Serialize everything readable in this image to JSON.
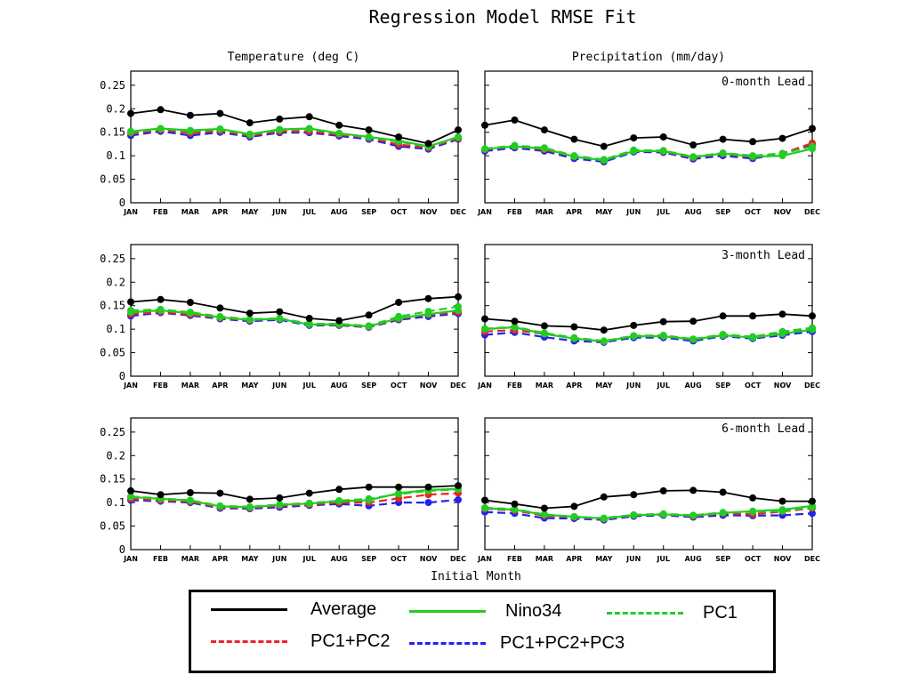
{
  "title": "Regression Model RMSE Fit",
  "column_titles": [
    "Temperature (deg C)",
    "Precipitation (mm/day)"
  ],
  "lead_labels": [
    "0-month Lead",
    "3-month Lead",
    "6-month Lead"
  ],
  "xlabel": "Initial Month",
  "months": [
    "JAN",
    "FEB",
    "MAR",
    "APR",
    "MAY",
    "JUN",
    "JUL",
    "AUG",
    "SEP",
    "OCT",
    "NOV",
    "DEC"
  ],
  "yticks": [
    "0",
    "0.05",
    "0.1",
    "0.15",
    "0.2",
    "0.25"
  ],
  "legend": [
    {
      "label": "Average",
      "color": "#000000",
      "style": "solid"
    },
    {
      "label": "Nino34",
      "color": "#22cc22",
      "style": "solid"
    },
    {
      "label": "PC1",
      "color": "#22cc22",
      "style": "dashed"
    },
    {
      "label": "PC1+PC2",
      "color": "#ee2222",
      "style": "dashed"
    },
    {
      "label": "PC1+PC2+PC3",
      "color": "#2222ee",
      "style": "dashed"
    }
  ],
  "chart_data": [
    {
      "type": "line",
      "row": 0,
      "col": 0,
      "title": "Temperature (deg C)",
      "ylim": [
        0,
        0.28
      ],
      "categories": [
        "JAN",
        "FEB",
        "MAR",
        "APR",
        "MAY",
        "JUN",
        "JUL",
        "AUG",
        "SEP",
        "OCT",
        "NOV",
        "DEC"
      ],
      "series": [
        {
          "name": "Average",
          "values": [
            0.19,
            0.198,
            0.186,
            0.19,
            0.17,
            0.178,
            0.183,
            0.165,
            0.155,
            0.14,
            0.126,
            0.155
          ]
        },
        {
          "name": "Nino34",
          "values": [
            0.152,
            0.158,
            0.154,
            0.157,
            0.146,
            0.156,
            0.158,
            0.148,
            0.14,
            0.132,
            0.12,
            0.14
          ]
        },
        {
          "name": "PC1",
          "values": [
            0.15,
            0.157,
            0.152,
            0.156,
            0.145,
            0.155,
            0.157,
            0.147,
            0.139,
            0.13,
            0.119,
            0.139
          ]
        },
        {
          "name": "PC1+PC2",
          "values": [
            0.148,
            0.155,
            0.148,
            0.153,
            0.143,
            0.152,
            0.152,
            0.145,
            0.138,
            0.124,
            0.117,
            0.137
          ]
        },
        {
          "name": "PC1+PC2+PC3",
          "values": [
            0.143,
            0.152,
            0.143,
            0.15,
            0.14,
            0.149,
            0.149,
            0.142,
            0.135,
            0.12,
            0.114,
            0.135
          ]
        }
      ]
    },
    {
      "type": "line",
      "row": 0,
      "col": 1,
      "title": "Precipitation (mm/day)",
      "ylim": [
        0,
        0.28
      ],
      "categories": [
        "JAN",
        "FEB",
        "MAR",
        "APR",
        "MAY",
        "JUN",
        "JUL",
        "AUG",
        "SEP",
        "OCT",
        "NOV",
        "DEC"
      ],
      "series": [
        {
          "name": "Average",
          "values": [
            0.165,
            0.176,
            0.155,
            0.135,
            0.12,
            0.138,
            0.14,
            0.123,
            0.135,
            0.13,
            0.137,
            0.158
          ]
        },
        {
          "name": "Nino34",
          "values": [
            0.114,
            0.12,
            0.115,
            0.098,
            0.09,
            0.11,
            0.11,
            0.097,
            0.105,
            0.098,
            0.1,
            0.115
          ]
        },
        {
          "name": "PC1",
          "values": [
            0.115,
            0.122,
            0.117,
            0.1,
            0.092,
            0.112,
            0.111,
            0.098,
            0.106,
            0.1,
            0.105,
            0.12
          ]
        },
        {
          "name": "PC1+PC2",
          "values": [
            0.113,
            0.12,
            0.113,
            0.098,
            0.09,
            0.111,
            0.109,
            0.096,
            0.104,
            0.097,
            0.105,
            0.127
          ]
        },
        {
          "name": "PC1+PC2+PC3",
          "values": [
            0.11,
            0.117,
            0.11,
            0.094,
            0.087,
            0.108,
            0.107,
            0.093,
            0.1,
            0.094,
            0.104,
            0.124
          ]
        }
      ]
    },
    {
      "type": "line",
      "row": 1,
      "col": 0,
      "title": "Temperature (deg C)",
      "ylim": [
        0,
        0.28
      ],
      "categories": [
        "JAN",
        "FEB",
        "MAR",
        "APR",
        "MAY",
        "JUN",
        "JUL",
        "AUG",
        "SEP",
        "OCT",
        "NOV",
        "DEC"
      ],
      "series": [
        {
          "name": "Average",
          "values": [
            0.158,
            0.163,
            0.157,
            0.145,
            0.134,
            0.137,
            0.123,
            0.118,
            0.13,
            0.157,
            0.165,
            0.169
          ]
        },
        {
          "name": "Nino34",
          "values": [
            0.136,
            0.14,
            0.134,
            0.125,
            0.12,
            0.122,
            0.11,
            0.11,
            0.106,
            0.123,
            0.132,
            0.14
          ]
        },
        {
          "name": "PC1",
          "values": [
            0.14,
            0.142,
            0.136,
            0.127,
            0.121,
            0.123,
            0.112,
            0.111,
            0.107,
            0.127,
            0.138,
            0.148
          ]
        },
        {
          "name": "PC1+PC2",
          "values": [
            0.132,
            0.137,
            0.131,
            0.124,
            0.119,
            0.122,
            0.11,
            0.109,
            0.105,
            0.122,
            0.131,
            0.136
          ]
        },
        {
          "name": "PC1+PC2+PC3",
          "values": [
            0.128,
            0.135,
            0.129,
            0.122,
            0.117,
            0.12,
            0.108,
            0.108,
            0.104,
            0.12,
            0.127,
            0.133
          ]
        }
      ]
    },
    {
      "type": "line",
      "row": 1,
      "col": 1,
      "title": "Precipitation (mm/day)",
      "ylim": [
        0,
        0.28
      ],
      "categories": [
        "JAN",
        "FEB",
        "MAR",
        "APR",
        "MAY",
        "JUN",
        "JUL",
        "AUG",
        "SEP",
        "OCT",
        "NOV",
        "DEC"
      ],
      "series": [
        {
          "name": "Average",
          "values": [
            0.122,
            0.117,
            0.107,
            0.105,
            0.098,
            0.108,
            0.116,
            0.117,
            0.128,
            0.128,
            0.132,
            0.128
          ]
        },
        {
          "name": "Nino34",
          "values": [
            0.1,
            0.104,
            0.09,
            0.08,
            0.074,
            0.085,
            0.085,
            0.078,
            0.087,
            0.082,
            0.09,
            0.099
          ]
        },
        {
          "name": "PC1",
          "values": [
            0.101,
            0.105,
            0.092,
            0.082,
            0.075,
            0.086,
            0.087,
            0.079,
            0.089,
            0.084,
            0.095,
            0.103
          ]
        },
        {
          "name": "PC1+PC2",
          "values": [
            0.095,
            0.098,
            0.09,
            0.08,
            0.074,
            0.085,
            0.086,
            0.078,
            0.088,
            0.083,
            0.093,
            0.1
          ]
        },
        {
          "name": "PC1+PC2+PC3",
          "values": [
            0.088,
            0.093,
            0.083,
            0.075,
            0.072,
            0.082,
            0.082,
            0.075,
            0.085,
            0.08,
            0.087,
            0.095
          ]
        }
      ]
    },
    {
      "type": "line",
      "row": 2,
      "col": 0,
      "title": "Temperature (deg C)",
      "ylim": [
        0,
        0.28
      ],
      "categories": [
        "JAN",
        "FEB",
        "MAR",
        "APR",
        "MAY",
        "JUN",
        "JUL",
        "AUG",
        "SEP",
        "OCT",
        "NOV",
        "DEC"
      ],
      "series": [
        {
          "name": "Average",
          "values": [
            0.125,
            0.117,
            0.121,
            0.12,
            0.107,
            0.11,
            0.12,
            0.128,
            0.133,
            0.133,
            0.133,
            0.136
          ]
        },
        {
          "name": "Nino34",
          "values": [
            0.112,
            0.108,
            0.104,
            0.092,
            0.09,
            0.095,
            0.098,
            0.103,
            0.105,
            0.12,
            0.127,
            0.129
          ]
        },
        {
          "name": "PC1",
          "values": [
            0.113,
            0.109,
            0.105,
            0.093,
            0.091,
            0.096,
            0.099,
            0.104,
            0.108,
            0.118,
            0.125,
            0.128
          ]
        },
        {
          "name": "PC1+PC2",
          "values": [
            0.108,
            0.105,
            0.102,
            0.09,
            0.089,
            0.093,
            0.096,
            0.1,
            0.1,
            0.109,
            0.117,
            0.12
          ]
        },
        {
          "name": "PC1+PC2+PC3",
          "values": [
            0.105,
            0.103,
            0.1,
            0.088,
            0.087,
            0.09,
            0.094,
            0.097,
            0.093,
            0.1,
            0.1,
            0.106
          ]
        }
      ]
    },
    {
      "type": "line",
      "row": 2,
      "col": 1,
      "title": "Precipitation (mm/day)",
      "ylim": [
        0,
        0.28
      ],
      "categories": [
        "JAN",
        "FEB",
        "MAR",
        "APR",
        "MAY",
        "JUN",
        "JUL",
        "AUG",
        "SEP",
        "OCT",
        "NOV",
        "DEC"
      ],
      "series": [
        {
          "name": "Average",
          "values": [
            0.105,
            0.097,
            0.088,
            0.092,
            0.112,
            0.117,
            0.125,
            0.126,
            0.122,
            0.11,
            0.103,
            0.103
          ]
        },
        {
          "name": "Nino34",
          "values": [
            0.088,
            0.085,
            0.074,
            0.07,
            0.066,
            0.073,
            0.075,
            0.072,
            0.078,
            0.082,
            0.085,
            0.093
          ]
        },
        {
          "name": "PC1",
          "values": [
            0.089,
            0.086,
            0.075,
            0.07,
            0.067,
            0.074,
            0.076,
            0.073,
            0.079,
            0.08,
            0.082,
            0.09
          ]
        },
        {
          "name": "PC1+PC2",
          "values": [
            0.087,
            0.083,
            0.072,
            0.069,
            0.065,
            0.073,
            0.075,
            0.071,
            0.077,
            0.075,
            0.081,
            0.088
          ]
        },
        {
          "name": "PC1+PC2+PC3",
          "values": [
            0.08,
            0.077,
            0.067,
            0.066,
            0.063,
            0.071,
            0.073,
            0.069,
            0.073,
            0.072,
            0.073,
            0.077
          ]
        }
      ]
    }
  ]
}
